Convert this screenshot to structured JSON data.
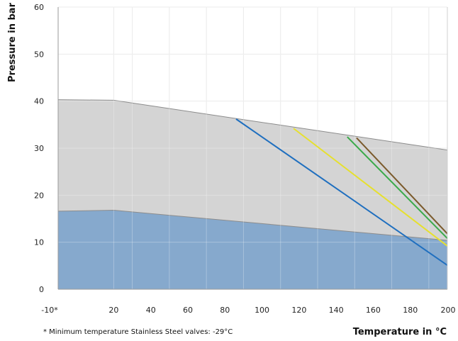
{
  "chart_data": {
    "type": "area",
    "xlabel": "Temperature in °C",
    "ylabel": "Pressure in bar",
    "footnote": "* Minimum temperature Stainless Steel valves:  -29°C",
    "xlim": [
      -10,
      200
    ],
    "ylim": [
      0,
      60
    ],
    "x_ticks": [
      {
        "value": -10,
        "label": "-10*"
      },
      {
        "value": 20,
        "label": "20"
      },
      {
        "value": 40,
        "label": "40"
      },
      {
        "value": 60,
        "label": "60"
      },
      {
        "value": 80,
        "label": "80"
      },
      {
        "value": 100,
        "label": "100"
      },
      {
        "value": 120,
        "label": "120"
      },
      {
        "value": 140,
        "label": "140"
      },
      {
        "value": 160,
        "label": "160"
      },
      {
        "value": 180,
        "label": "180"
      },
      {
        "value": 200,
        "label": "200"
      }
    ],
    "x_grid": [
      -10,
      20,
      30,
      50,
      70,
      90,
      110,
      130,
      150,
      170,
      190,
      200
    ],
    "y_ticks": [
      {
        "value": 0,
        "label": "0"
      },
      {
        "value": 10,
        "label": "10"
      },
      {
        "value": 20,
        "label": "20"
      },
      {
        "value": 30,
        "label": "30"
      },
      {
        "value": 40,
        "label": "40"
      },
      {
        "value": 50,
        "label": "50"
      },
      {
        "value": 60,
        "label": "60"
      }
    ],
    "grid": true,
    "areas": [
      {
        "id": "upper-area",
        "color": "#d4d4d4",
        "edge": "#8c8c8c",
        "points": [
          [
            -10,
            40.3
          ],
          [
            20,
            40.2
          ],
          [
            200,
            29.6
          ]
        ]
      },
      {
        "id": "lower-area",
        "color": "#86a9cd",
        "edge": "#8c8c8c",
        "points": [
          [
            -10,
            16.6
          ],
          [
            20,
            16.8
          ],
          [
            200,
            10.4
          ]
        ]
      }
    ],
    "lines": [
      {
        "id": "blue-line",
        "color": "#1f6fbf",
        "points": [
          [
            86,
            36.2
          ],
          [
            200,
            5.1
          ]
        ]
      },
      {
        "id": "yellow-line",
        "color": "#e6e02e",
        "points": [
          [
            117,
            34.2
          ],
          [
            200,
            9.2
          ]
        ]
      },
      {
        "id": "green-line",
        "color": "#3aaa4a",
        "points": [
          [
            146,
            32.4
          ],
          [
            200,
            10.8
          ]
        ]
      },
      {
        "id": "brown-line",
        "color": "#7a5a2b",
        "points": [
          [
            151,
            32.2
          ],
          [
            200,
            11.8
          ]
        ]
      }
    ]
  }
}
